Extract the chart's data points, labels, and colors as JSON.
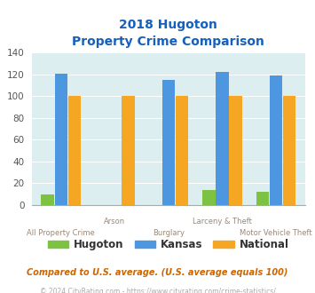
{
  "title_line1": "2018 Hugoton",
  "title_line2": "Property Crime Comparison",
  "categories": [
    "All Property Crime",
    "Arson",
    "Burglary",
    "Larceny & Theft",
    "Motor Vehicle Theft"
  ],
  "hugoton": [
    10,
    0,
    0,
    14,
    12
  ],
  "kansas": [
    121,
    0,
    115,
    122,
    119
  ],
  "national": [
    100,
    100,
    100,
    100,
    100
  ],
  "colors": {
    "hugoton": "#7dc242",
    "kansas": "#4d96e0",
    "national": "#f5a623"
  },
  "ylim": [
    0,
    140
  ],
  "yticks": [
    0,
    20,
    40,
    60,
    80,
    100,
    120,
    140
  ],
  "bg_color": "#dceef0",
  "title_color": "#1560bd",
  "xlabel_color": "#9b8878",
  "note_color": "#cc6600",
  "copyright_color": "#aaaaaa",
  "note_text": "Compared to U.S. average. (U.S. average equals 100)",
  "copyright_text": "© 2024 CityRating.com - https://www.cityrating.com/crime-statistics/"
}
